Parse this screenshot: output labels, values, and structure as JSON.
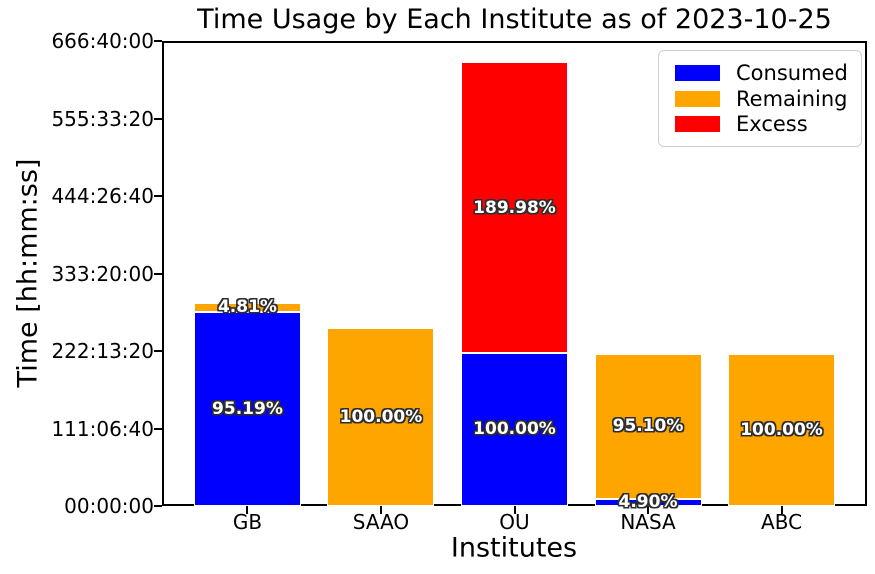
{
  "chart_data": {
    "type": "bar",
    "stacked": true,
    "title": "Time Usage by Each Institute as of 2023-10-25",
    "xlabel": "Institutes",
    "ylabel": "Time [hh:mm:ss]",
    "categories": [
      "GB",
      "SAAO",
      "OU",
      "NASA",
      "ABC"
    ],
    "y_axis": {
      "min_seconds": 0,
      "max_seconds": 2400000,
      "tick_interval_seconds": 400000,
      "tick_labels": [
        "00:00:00",
        "111:06:40",
        "222:13:20",
        "333:20:00",
        "444:26:40",
        "555:33:20",
        "666:40:00"
      ],
      "grid": false
    },
    "series": [
      {
        "name": "Consumed",
        "color": "#0000ff",
        "values_seconds": [
          999500,
          0,
          790000,
          38500,
          0
        ],
        "percent_labels": [
          "95.19%",
          null,
          "100.00%",
          "4.90%",
          null
        ]
      },
      {
        "name": "Remaining",
        "color": "#ffa500",
        "values_seconds": [
          50500,
          920000,
          0,
          747500,
          786500
        ],
        "percent_labels": [
          "4.81%",
          "100.00%",
          null,
          "95.10%",
          "100.00%"
        ]
      },
      {
        "name": "Excess",
        "color": "#ff0000",
        "values_seconds": [
          0,
          0,
          1500800,
          0,
          0
        ],
        "percent_labels": [
          null,
          null,
          "189.98%",
          null,
          null
        ]
      }
    ],
    "legend": {
      "position": "upper right",
      "entries": [
        {
          "label": "Consumed",
          "color": "#0000ff"
        },
        {
          "label": "Remaining",
          "color": "#ffa500"
        },
        {
          "label": "Excess",
          "color": "#ff0000"
        }
      ]
    },
    "bar_label_style": {
      "fill": "#ffffff",
      "outline": "#2e2e2e"
    }
  }
}
